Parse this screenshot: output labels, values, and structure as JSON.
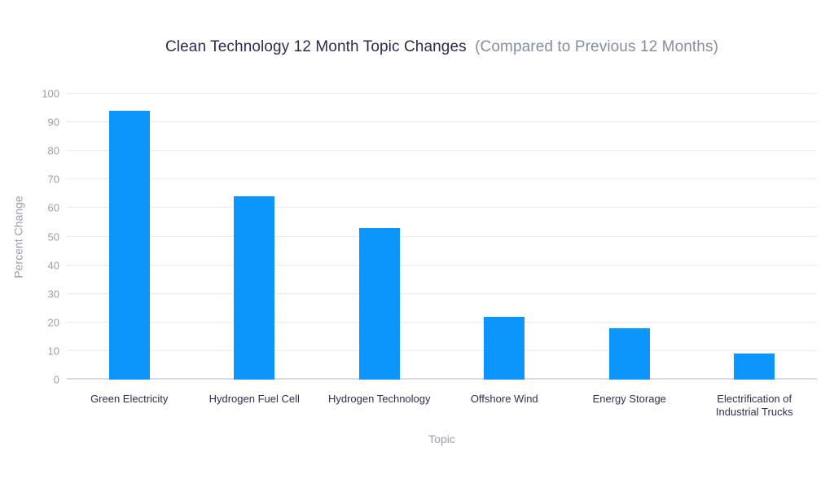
{
  "title": {
    "main": "Clean Technology 12 Month Topic Changes",
    "sub": "(Compared to Previous 12 Months)"
  },
  "chart_data": {
    "type": "bar",
    "title": "Clean Technology 12 Month Topic Changes (Compared to Previous 12 Months)",
    "categories": [
      "Green Electricity",
      "Hydrogen Fuel Cell",
      "Hydrogen Technology",
      "Offshore Wind",
      "Energy Storage",
      "Electrification of Industrial Trucks"
    ],
    "values": [
      94,
      64,
      53,
      22,
      18,
      9
    ],
    "xlabel": "Topic",
    "ylabel": "Percent Change",
    "ylim": [
      0,
      100
    ],
    "yticks": [
      0,
      10,
      20,
      30,
      40,
      50,
      60,
      70,
      80,
      90,
      100
    ],
    "grid": true,
    "legend_position": "none"
  },
  "colors": {
    "bar": "#0c95fa",
    "title_main": "#2b2a55",
    "title_sub": "#878da0",
    "axis_text": "#9b9dad",
    "category_text": "#2e2d55",
    "gridline": "#e9e9ef",
    "baseline": "#d9dae2",
    "background": "#ffffff"
  }
}
